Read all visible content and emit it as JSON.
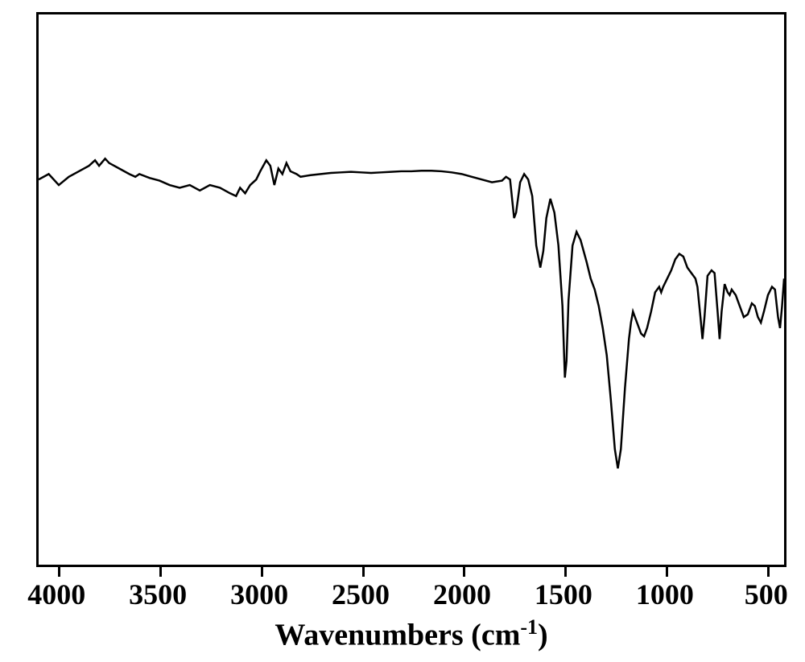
{
  "chart": {
    "type": "line",
    "xlabel": "Wavenumbers",
    "xlabel_unit": "(cm",
    "xlabel_exp": "-1",
    "xlabel_close": ")",
    "xlim": [
      4100,
      400
    ],
    "ylim": [
      0,
      100
    ],
    "xticks": [
      4000,
      3500,
      3000,
      2500,
      2000,
      1500,
      1000,
      500
    ],
    "background_color": "#ffffff",
    "line_color": "#000000",
    "line_width": 2.5,
    "border_width": 3,
    "title_fontsize": 38,
    "label_fontsize": 36,
    "data": [
      [
        4100,
        70
      ],
      [
        4050,
        71
      ],
      [
        4000,
        69
      ],
      [
        3950,
        70.5
      ],
      [
        3900,
        71.5
      ],
      [
        3850,
        72.5
      ],
      [
        3820,
        73.5
      ],
      [
        3800,
        72.5
      ],
      [
        3770,
        73.8
      ],
      [
        3750,
        73
      ],
      [
        3700,
        72
      ],
      [
        3650,
        71
      ],
      [
        3620,
        70.5
      ],
      [
        3600,
        71
      ],
      [
        3550,
        70.3
      ],
      [
        3500,
        69.8
      ],
      [
        3450,
        69
      ],
      [
        3400,
        68.5
      ],
      [
        3350,
        69
      ],
      [
        3300,
        68
      ],
      [
        3250,
        69
      ],
      [
        3200,
        68.5
      ],
      [
        3150,
        67.5
      ],
      [
        3120,
        67
      ],
      [
        3100,
        68.5
      ],
      [
        3075,
        67.5
      ],
      [
        3050,
        69
      ],
      [
        3020,
        70
      ],
      [
        3000,
        71.5
      ],
      [
        2970,
        73.5
      ],
      [
        2950,
        72.5
      ],
      [
        2930,
        69
      ],
      [
        2910,
        72
      ],
      [
        2890,
        71
      ],
      [
        2870,
        73
      ],
      [
        2850,
        71.5
      ],
      [
        2820,
        71
      ],
      [
        2800,
        70.5
      ],
      [
        2750,
        70.8
      ],
      [
        2700,
        71
      ],
      [
        2650,
        71.2
      ],
      [
        2600,
        71.3
      ],
      [
        2550,
        71.4
      ],
      [
        2500,
        71.3
      ],
      [
        2450,
        71.2
      ],
      [
        2400,
        71.3
      ],
      [
        2350,
        71.4
      ],
      [
        2300,
        71.5
      ],
      [
        2250,
        71.5
      ],
      [
        2200,
        71.6
      ],
      [
        2150,
        71.6
      ],
      [
        2100,
        71.5
      ],
      [
        2050,
        71.3
      ],
      [
        2000,
        71
      ],
      [
        1950,
        70.5
      ],
      [
        1900,
        70
      ],
      [
        1850,
        69.5
      ],
      [
        1800,
        69.8
      ],
      [
        1780,
        70.5
      ],
      [
        1760,
        70
      ],
      [
        1740,
        63
      ],
      [
        1730,
        64
      ],
      [
        1710,
        69.5
      ],
      [
        1690,
        71
      ],
      [
        1670,
        70
      ],
      [
        1650,
        67
      ],
      [
        1630,
        58
      ],
      [
        1610,
        54
      ],
      [
        1595,
        57
      ],
      [
        1580,
        63
      ],
      [
        1560,
        66.5
      ],
      [
        1540,
        64
      ],
      [
        1520,
        58
      ],
      [
        1500,
        47
      ],
      [
        1488,
        34
      ],
      [
        1480,
        37
      ],
      [
        1470,
        48
      ],
      [
        1450,
        58
      ],
      [
        1430,
        60.5
      ],
      [
        1410,
        59
      ],
      [
        1395,
        57
      ],
      [
        1380,
        55
      ],
      [
        1360,
        52
      ],
      [
        1340,
        50
      ],
      [
        1320,
        47
      ],
      [
        1300,
        43
      ],
      [
        1280,
        38
      ],
      [
        1260,
        30
      ],
      [
        1240,
        21
      ],
      [
        1225,
        17.5
      ],
      [
        1210,
        21
      ],
      [
        1190,
        32
      ],
      [
        1170,
        41
      ],
      [
        1160,
        44
      ],
      [
        1150,
        46
      ],
      [
        1130,
        44
      ],
      [
        1110,
        42
      ],
      [
        1095,
        41.5
      ],
      [
        1080,
        43
      ],
      [
        1060,
        46
      ],
      [
        1040,
        49.5
      ],
      [
        1020,
        50.5
      ],
      [
        1010,
        49.5
      ],
      [
        1000,
        50.5
      ],
      [
        980,
        52
      ],
      [
        960,
        53.5
      ],
      [
        940,
        55.5
      ],
      [
        920,
        56.5
      ],
      [
        900,
        56
      ],
      [
        880,
        54
      ],
      [
        860,
        53
      ],
      [
        840,
        52
      ],
      [
        830,
        50.5
      ],
      [
        815,
        45
      ],
      [
        805,
        41
      ],
      [
        795,
        45
      ],
      [
        780,
        52.5
      ],
      [
        760,
        53.5
      ],
      [
        745,
        53
      ],
      [
        730,
        46
      ],
      [
        720,
        41
      ],
      [
        710,
        46
      ],
      [
        695,
        51
      ],
      [
        680,
        49.5
      ],
      [
        670,
        49
      ],
      [
        660,
        50
      ],
      [
        640,
        49
      ],
      [
        620,
        47
      ],
      [
        600,
        45
      ],
      [
        580,
        45.5
      ],
      [
        560,
        47.5
      ],
      [
        545,
        47
      ],
      [
        530,
        45
      ],
      [
        515,
        44
      ],
      [
        500,
        46
      ],
      [
        480,
        49
      ],
      [
        460,
        50.5
      ],
      [
        445,
        50
      ],
      [
        430,
        45
      ],
      [
        420,
        43
      ],
      [
        410,
        47
      ],
      [
        400,
        52
      ]
    ]
  }
}
